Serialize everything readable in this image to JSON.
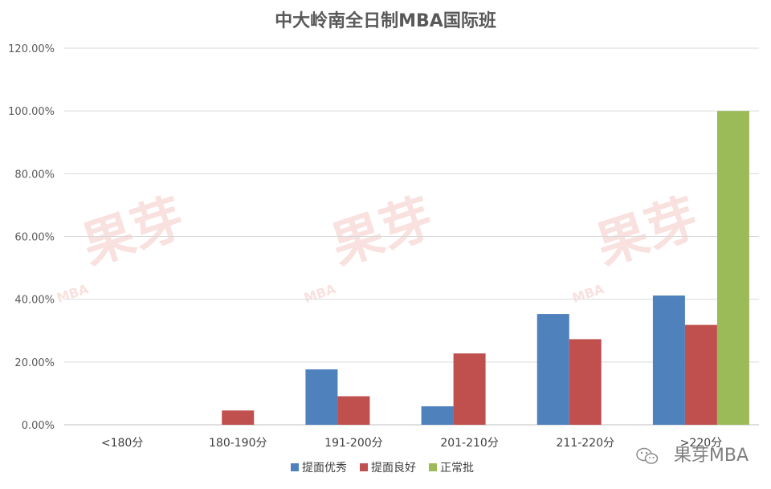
{
  "chart_data": {
    "type": "bar",
    "title": "中大岭南全日制MBA国际班",
    "categories": [
      "<180分",
      "180-190分",
      "191-200分",
      "201-210分",
      "211-220分",
      ">220分"
    ],
    "series": [
      {
        "name": "提面优秀",
        "color": "#4f81bd",
        "values": [
          0,
          0,
          17.65,
          5.88,
          35.29,
          41.18
        ]
      },
      {
        "name": "提面良好",
        "color": "#c0504d",
        "values": [
          0,
          4.55,
          9.09,
          22.73,
          27.27,
          31.82
        ]
      },
      {
        "name": "正常批",
        "color": "#9bbb59",
        "values": [
          0,
          0,
          0,
          0,
          0,
          100
        ]
      }
    ],
    "ylim": [
      0,
      120
    ],
    "yticks": [
      "0.00%",
      "20.00%",
      "40.00%",
      "60.00%",
      "80.00%",
      "100.00%",
      "120.00%"
    ],
    "grid": true,
    "legend_position": "bottom"
  },
  "watermark": {
    "text": "果芽",
    "sub": "MBA"
  },
  "brand": {
    "text": "果芽MBA",
    "icon": "wechat-icon"
  }
}
